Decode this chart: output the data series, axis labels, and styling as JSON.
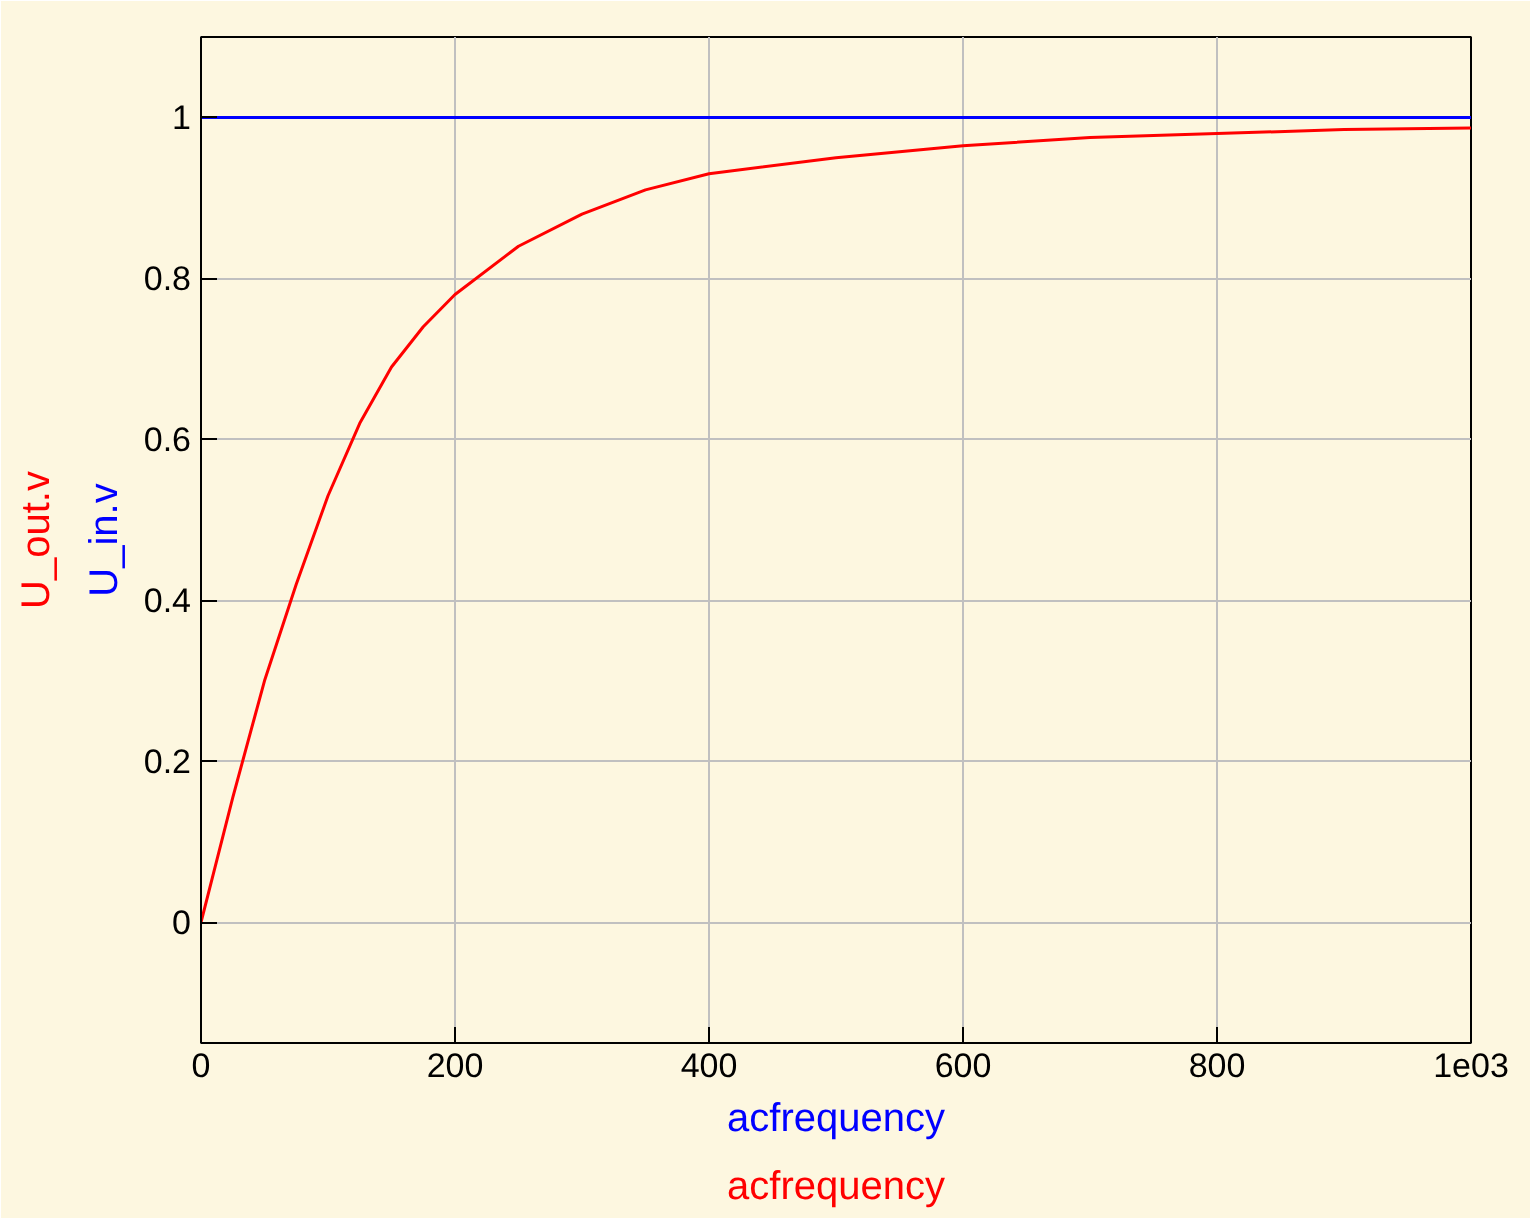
{
  "chart_data": {
    "type": "line",
    "xlabel": "acfrequency",
    "annotations": [
      "acfrequency"
    ],
    "xlim": [
      0,
      1000
    ],
    "ylim": [
      -0.15,
      1.1
    ],
    "xticks": [
      0,
      200,
      400,
      600,
      800,
      {
        "value": 1000,
        "label": "1e03"
      }
    ],
    "yticks": [
      0,
      0.2,
      0.4,
      0.6,
      0.8,
      1
    ],
    "grid": true,
    "line_style": "solid",
    "marker": "none",
    "series": [
      {
        "name": "U_out.v",
        "color": "#ff0000",
        "x": [
          0,
          25,
          50,
          75,
          100,
          125,
          150,
          175,
          200,
          250,
          300,
          350,
          400,
          500,
          600,
          700,
          800,
          900,
          1000
        ],
        "values": [
          0,
          0.155,
          0.3,
          0.42,
          0.53,
          0.62,
          0.69,
          0.74,
          0.78,
          0.84,
          0.88,
          0.91,
          0.93,
          0.95,
          0.965,
          0.975,
          0.98,
          0.985,
          0.987
        ]
      },
      {
        "name": "U_in.v",
        "color": "#0000ff",
        "x": [
          0,
          500,
          1000
        ],
        "values": [
          1,
          1,
          1
        ]
      }
    ]
  }
}
